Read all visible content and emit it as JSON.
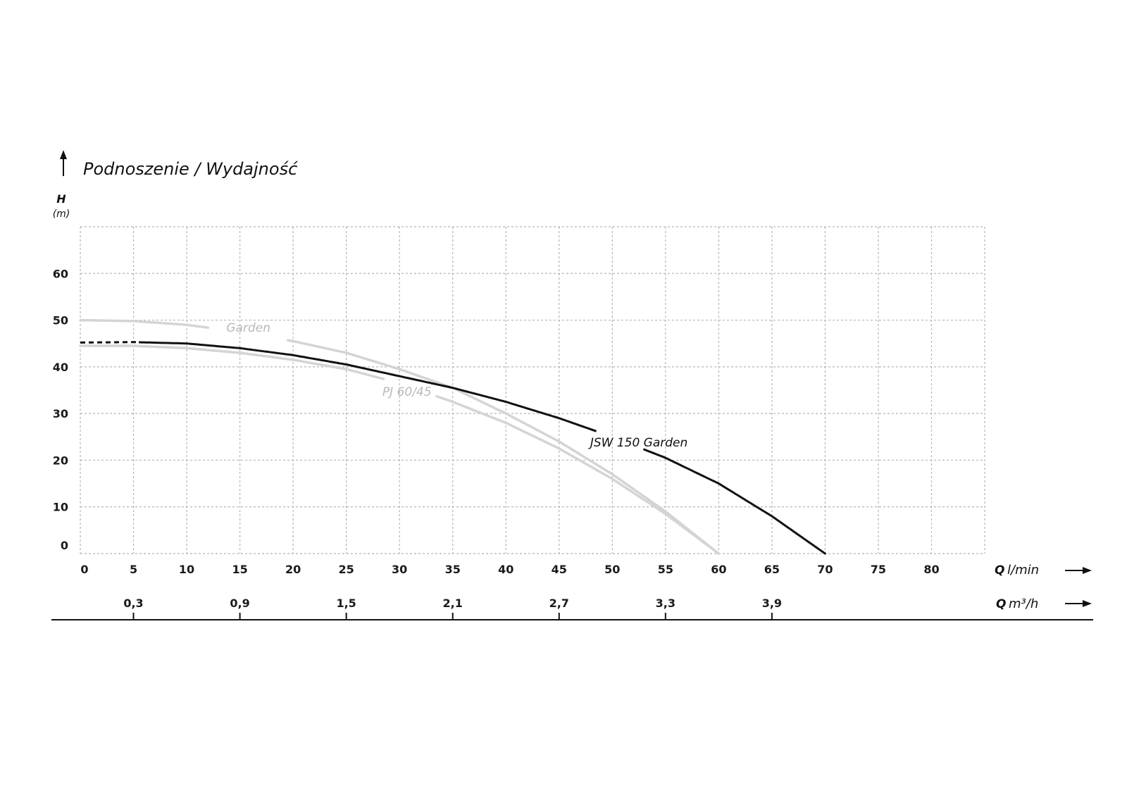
{
  "chart_data": {
    "type": "line",
    "title": "Podnoszenie / Wydajność",
    "ylabel": "H",
    "yunit": "(m)",
    "xlabel": "Q",
    "xunit": "l/min",
    "x2label": "Q",
    "x2unit": "m³/h",
    "xlim": [
      0,
      85
    ],
    "ylim": [
      0,
      70
    ],
    "x_ticks": [
      0,
      5,
      10,
      15,
      20,
      25,
      30,
      35,
      40,
      45,
      50,
      55,
      60,
      65,
      70,
      75,
      80
    ],
    "y_ticks": [
      0,
      10,
      20,
      30,
      40,
      50,
      60
    ],
    "x2_ticks": [
      {
        "label": "0,3",
        "x": 5
      },
      {
        "label": "0,9",
        "x": 15
      },
      {
        "label": "1,5",
        "x": 25
      },
      {
        "label": "2,1",
        "x": 35
      },
      {
        "label": "2,7",
        "x": 45
      },
      {
        "label": "3,3",
        "x": 55
      },
      {
        "label": "3,9",
        "x": 65
      }
    ],
    "grid": true,
    "series": [
      {
        "name": "Garden",
        "color": "#d4d4d4",
        "points": [
          [
            0,
            50
          ],
          [
            5,
            49.8
          ],
          [
            10,
            49
          ],
          [
            15,
            47.5
          ],
          [
            20,
            45.5
          ],
          [
            25,
            43
          ],
          [
            30,
            39.5
          ],
          [
            35,
            35.5
          ],
          [
            40,
            30
          ],
          [
            45,
            24
          ],
          [
            50,
            17
          ],
          [
            55,
            9
          ],
          [
            60,
            0
          ]
        ]
      },
      {
        "name": "PJ 60/45",
        "color": "#d4d4d4",
        "points": [
          [
            0,
            44.5
          ],
          [
            5,
            44.5
          ],
          [
            10,
            44
          ],
          [
            15,
            43
          ],
          [
            20,
            41.5
          ],
          [
            25,
            39.5
          ],
          [
            30,
            36.5
          ],
          [
            35,
            32.5
          ],
          [
            40,
            28
          ],
          [
            45,
            22.5
          ],
          [
            50,
            16
          ],
          [
            55,
            8.5
          ],
          [
            60,
            0
          ]
        ]
      },
      {
        "name": "JSW 150 Garden",
        "color": "#111111",
        "dashed_until": 5.5,
        "points": [
          [
            0,
            45.2
          ],
          [
            5,
            45.3
          ],
          [
            10,
            45
          ],
          [
            15,
            44
          ],
          [
            20,
            42.5
          ],
          [
            25,
            40.5
          ],
          [
            30,
            38
          ],
          [
            35,
            35.5
          ],
          [
            40,
            32.5
          ],
          [
            45,
            29
          ],
          [
            50,
            25
          ],
          [
            55,
            20.5
          ],
          [
            60,
            15
          ],
          [
            65,
            8
          ],
          [
            70,
            0
          ]
        ]
      }
    ]
  }
}
